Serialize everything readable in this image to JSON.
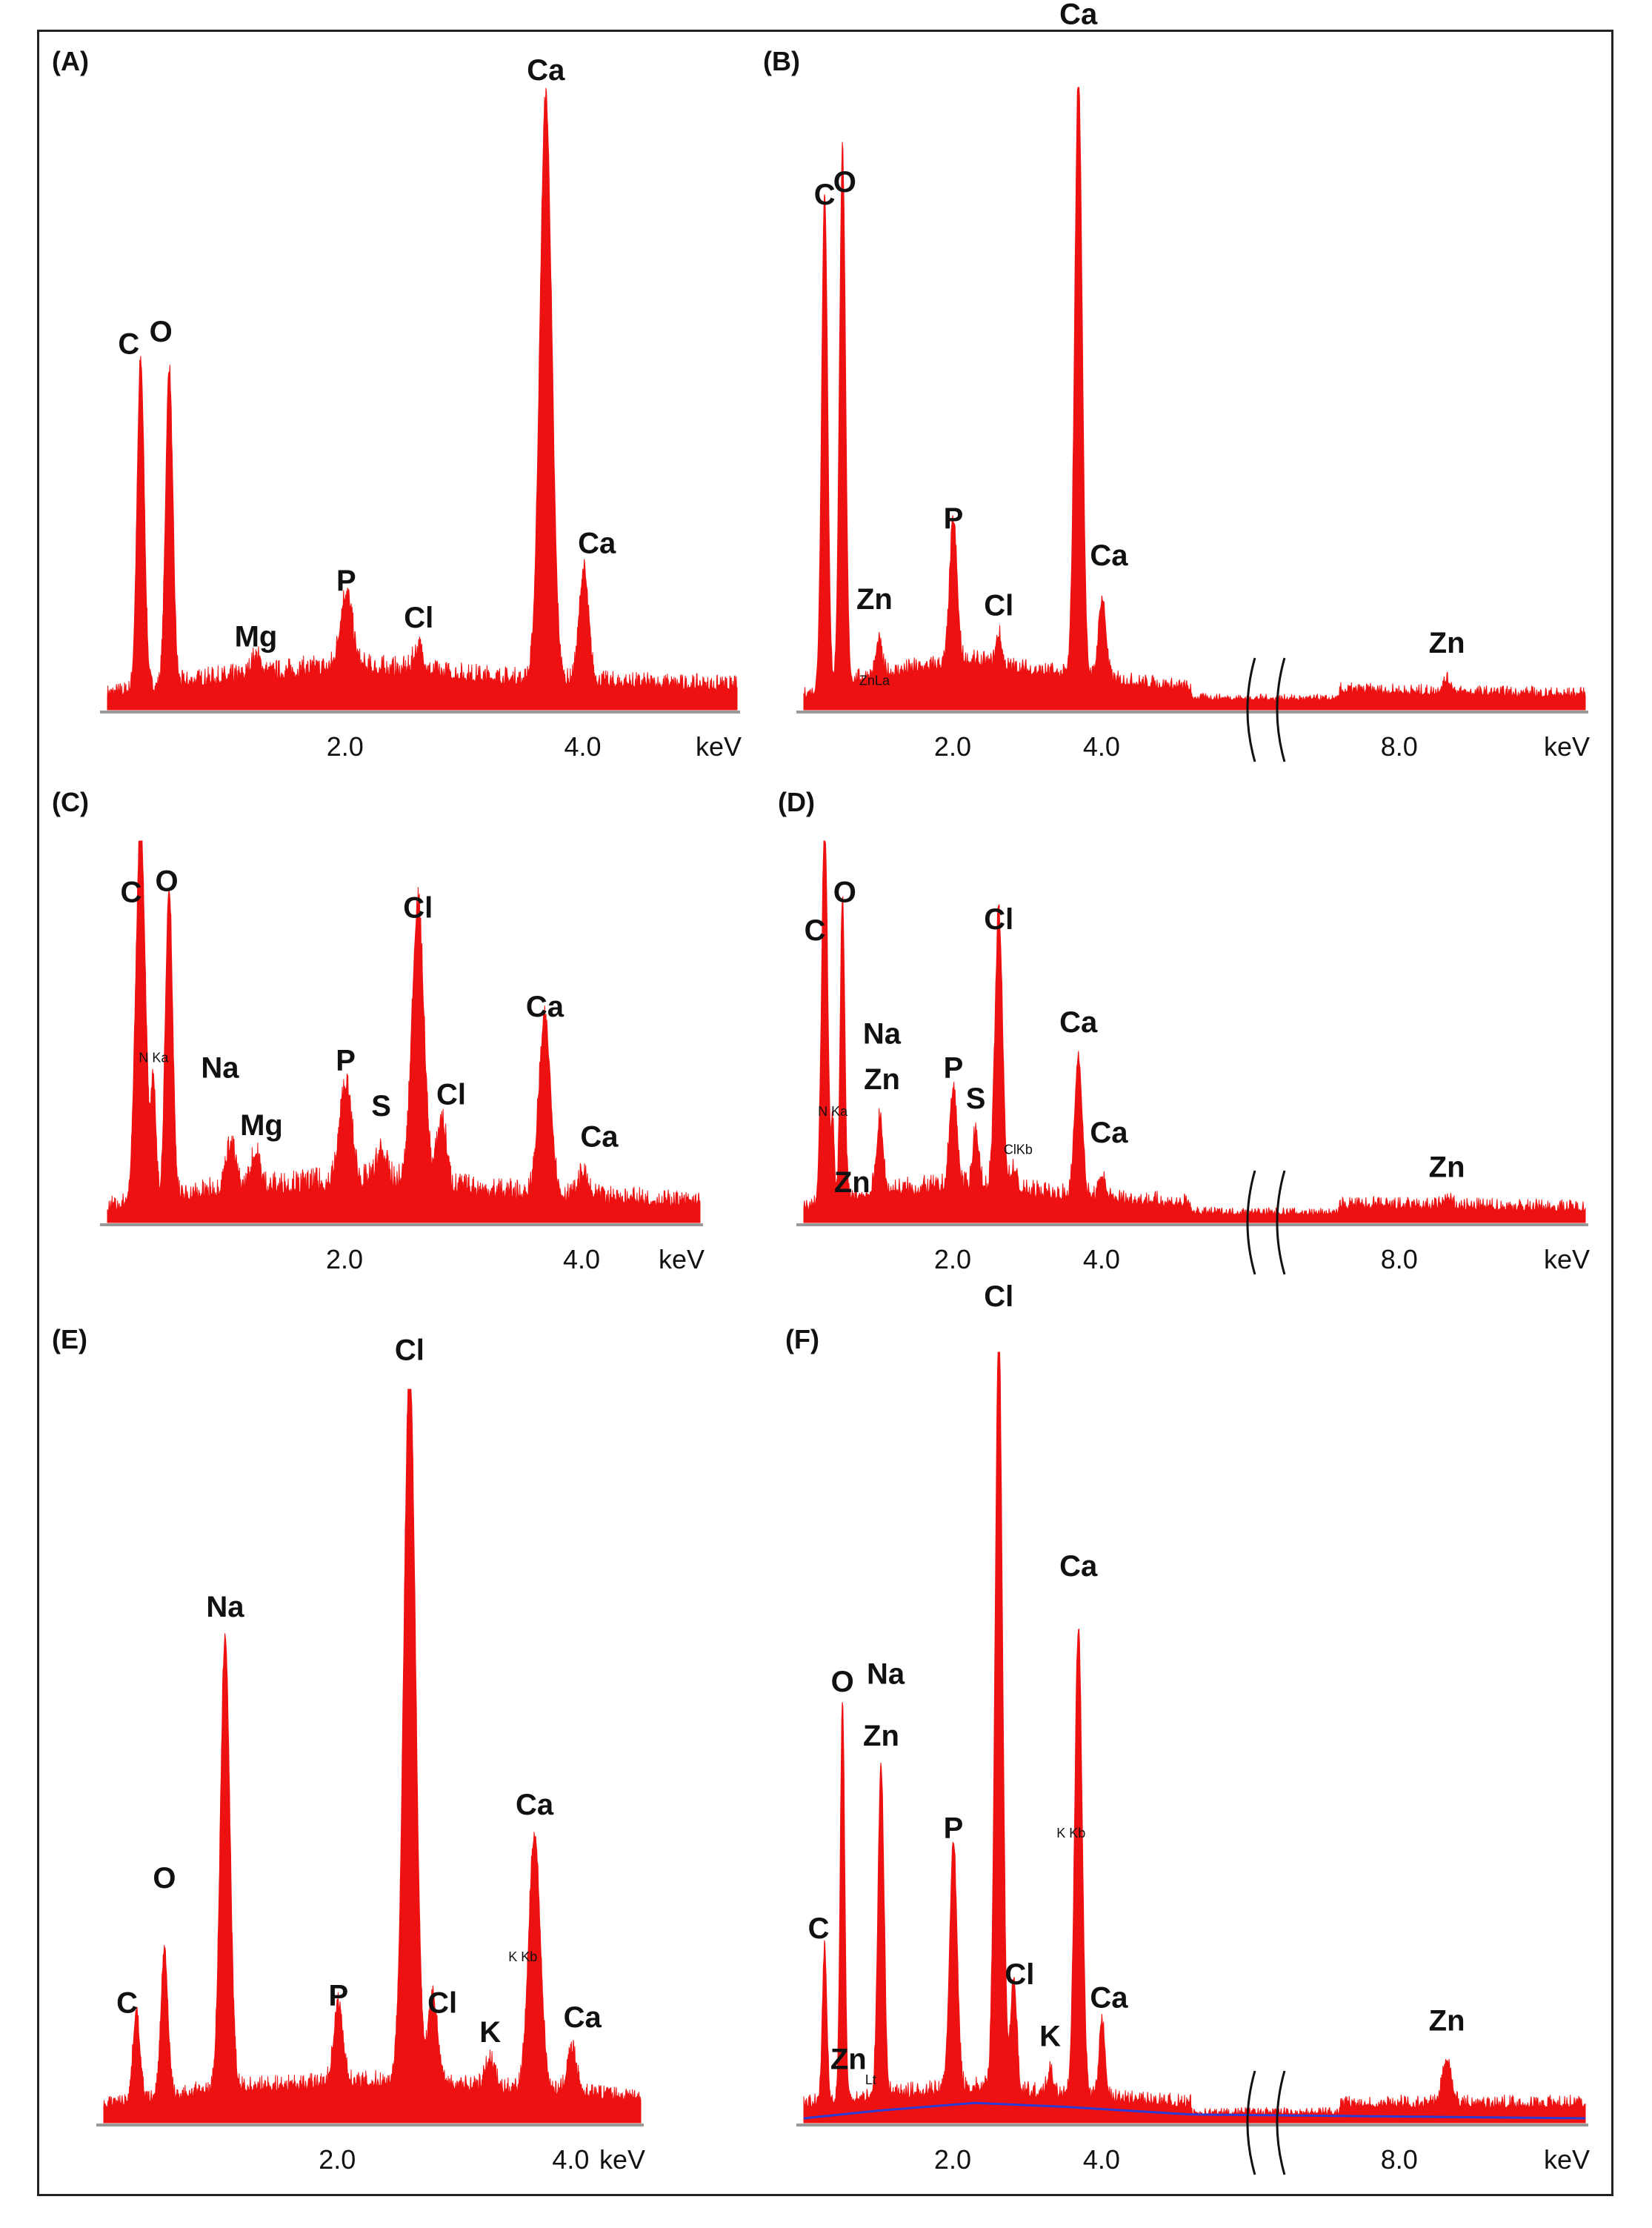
{
  "colors": {
    "spectrum": "#ee1111",
    "axis": "#999999",
    "text": "#111111",
    "background_curve": "#2a3bd6",
    "frame": "#222222"
  },
  "chart_data": [
    {
      "type": "area",
      "panel": "(A)",
      "xlabel": "keV",
      "xlim": [
        0,
        5.3
      ],
      "ylim": [
        0,
        1
      ],
      "ticks": [
        {
          "v": 2.0,
          "label": "2.0"
        },
        {
          "v": 4.0,
          "label": "4.0"
        }
      ],
      "axis_break": false,
      "noise": 0.04,
      "background": [
        [
          0,
          0.02
        ],
        [
          0.8,
          0.04
        ],
        [
          2.0,
          0.06
        ],
        [
          3.5,
          0.04
        ],
        [
          5.3,
          0.03
        ]
      ],
      "peaks": [
        {
          "x": 0.28,
          "h": 0.53,
          "w": 0.03
        },
        {
          "x": 0.52,
          "h": 0.51,
          "w": 0.03
        },
        {
          "x": 1.25,
          "h": 0.03,
          "w": 0.04
        },
        {
          "x": 2.01,
          "h": 0.12,
          "w": 0.05
        },
        {
          "x": 2.62,
          "h": 0.04,
          "w": 0.04
        },
        {
          "x": 3.69,
          "h": 0.94,
          "w": 0.05
        },
        {
          "x": 4.01,
          "h": 0.18,
          "w": 0.04
        }
      ],
      "annotations": [
        {
          "text": "C",
          "x": 0.18,
          "y": 0.56
        },
        {
          "text": "O",
          "x": 0.45,
          "y": 0.58
        },
        {
          "text": "Mg",
          "x": 1.25,
          "y": 0.09
        },
        {
          "text": "P",
          "x": 2.01,
          "y": 0.18
        },
        {
          "text": "Cl",
          "x": 2.62,
          "y": 0.12
        },
        {
          "text": "Ca",
          "x": 3.69,
          "y": 1.0
        },
        {
          "text": "Ca",
          "x": 4.12,
          "y": 0.24
        }
      ]
    },
    {
      "type": "area",
      "panel": "(B)",
      "xlabel": "keV",
      "xlim": [
        0,
        10.5
      ],
      "ylim": [
        0,
        1
      ],
      "ticks": [
        {
          "v": 2.0,
          "label": "2.0"
        },
        {
          "v": 4.0,
          "label": "4.0"
        },
        {
          "v": 8.0,
          "label": "8.0"
        }
      ],
      "axis_break": true,
      "break_gap": [
        5.2,
        7.2
      ],
      "noise": 0.03,
      "background": [
        [
          0,
          0.02
        ],
        [
          0.9,
          0.05
        ],
        [
          2.2,
          0.07
        ],
        [
          3.5,
          0.05
        ],
        [
          5.2,
          0.03
        ],
        [
          10.5,
          0.02
        ]
      ],
      "peaks": [
        {
          "x": 0.28,
          "h": 0.8,
          "w": 0.04
        },
        {
          "x": 0.52,
          "h": 0.86,
          "w": 0.04
        },
        {
          "x": 1.01,
          "h": 0.05,
          "w": 0.04
        },
        {
          "x": 2.01,
          "h": 0.23,
          "w": 0.05
        },
        {
          "x": 2.62,
          "h": 0.05,
          "w": 0.04
        },
        {
          "x": 3.69,
          "h": 0.97,
          "w": 0.05
        },
        {
          "x": 4.01,
          "h": 0.13,
          "w": 0.05
        },
        {
          "x": 8.64,
          "h": 0.02,
          "w": 0.06
        }
      ],
      "annotations": [
        {
          "text": "C",
          "x": 0.28,
          "y": 0.8
        },
        {
          "text": "O",
          "x": 0.55,
          "y": 0.82
        },
        {
          "text": "Zn",
          "x": 0.95,
          "y": 0.15
        },
        {
          "text": "Cl",
          "x": 2.62,
          "y": 0.14
        },
        {
          "text": "P",
          "x": 2.01,
          "y": 0.28
        },
        {
          "text": "Ca",
          "x": 3.69,
          "y": 1.09
        },
        {
          "text": "Ca",
          "x": 4.1,
          "y": 0.22
        },
        {
          "text": "Zn",
          "x": 8.64,
          "y": 0.08
        }
      ],
      "small_annotations": [
        {
          "text": "ZnLa",
          "x": 0.95,
          "y": 0.04
        }
      ]
    },
    {
      "type": "area",
      "panel": "(C)",
      "xlabel": "keV",
      "xlim": [
        0,
        5.0
      ],
      "ylim": [
        0,
        1
      ],
      "ticks": [
        {
          "v": 2.0,
          "label": "2.0"
        },
        {
          "v": 4.0,
          "label": "4.0"
        }
      ],
      "axis_break": false,
      "noise": 0.06,
      "background": [
        [
          0,
          0.03
        ],
        [
          1.0,
          0.07
        ],
        [
          2.3,
          0.09
        ],
        [
          3.5,
          0.06
        ],
        [
          5.0,
          0.04
        ]
      ],
      "peaks": [
        {
          "x": 0.28,
          "h": 1.0,
          "w": 0.04
        },
        {
          "x": 0.52,
          "h": 0.82,
          "w": 0.03
        },
        {
          "x": 0.39,
          "h": 0.3,
          "w": 0.02
        },
        {
          "x": 1.04,
          "h": 0.12,
          "w": 0.04
        },
        {
          "x": 1.25,
          "h": 0.09,
          "w": 0.04
        },
        {
          "x": 2.01,
          "h": 0.26,
          "w": 0.05
        },
        {
          "x": 2.31,
          "h": 0.08,
          "w": 0.04
        },
        {
          "x": 2.62,
          "h": 0.74,
          "w": 0.05
        },
        {
          "x": 2.82,
          "h": 0.18,
          "w": 0.04
        },
        {
          "x": 3.69,
          "h": 0.46,
          "w": 0.05
        },
        {
          "x": 4.01,
          "h": 0.06,
          "w": 0.04
        }
      ],
      "annotations": [
        {
          "text": "C",
          "x": 0.2,
          "y": 0.82
        },
        {
          "text": "O",
          "x": 0.5,
          "y": 0.85
        },
        {
          "text": "Na",
          "x": 0.95,
          "y": 0.36
        },
        {
          "text": "Mg",
          "x": 1.3,
          "y": 0.21
        },
        {
          "text": "P",
          "x": 2.01,
          "y": 0.38
        },
        {
          "text": "S",
          "x": 2.31,
          "y": 0.26
        },
        {
          "text": "Cl",
          "x": 2.62,
          "y": 0.78
        },
        {
          "text": "Cl",
          "x": 2.9,
          "y": 0.29
        },
        {
          "text": "Ca",
          "x": 3.69,
          "y": 0.52
        },
        {
          "text": "Ca",
          "x": 4.15,
          "y": 0.18
        }
      ],
      "small_annotations": [
        {
          "text": "N Ka",
          "x": 0.39,
          "y": 0.42
        }
      ]
    },
    {
      "type": "area",
      "panel": "(D)",
      "xlabel": "keV",
      "xlim": [
        0,
        10.5
      ],
      "ylim": [
        0,
        1
      ],
      "ticks": [
        {
          "v": 2.0,
          "label": "2.0"
        },
        {
          "v": 4.0,
          "label": "4.0"
        },
        {
          "v": 8.0,
          "label": "8.0"
        }
      ],
      "axis_break": true,
      "break_gap": [
        5.2,
        7.2
      ],
      "noise": 0.05,
      "background": [
        [
          0,
          0.03
        ],
        [
          1.0,
          0.07
        ],
        [
          2.3,
          0.08
        ],
        [
          3.5,
          0.06
        ],
        [
          5.2,
          0.04
        ],
        [
          10.5,
          0.03
        ]
      ],
      "peaks": [
        {
          "x": 0.28,
          "h": 1.0,
          "w": 0.04
        },
        {
          "x": 0.52,
          "h": 0.8,
          "w": 0.03
        },
        {
          "x": 0.39,
          "h": 0.2,
          "w": 0.02
        },
        {
          "x": 1.01,
          "h": 0.12,
          "w": 0.04
        },
        {
          "x": 1.04,
          "h": 0.08,
          "w": 0.04
        },
        {
          "x": 2.01,
          "h": 0.26,
          "w": 0.05
        },
        {
          "x": 2.31,
          "h": 0.15,
          "w": 0.04
        },
        {
          "x": 2.62,
          "h": 0.73,
          "w": 0.05
        },
        {
          "x": 2.82,
          "h": 0.06,
          "w": 0.04
        },
        {
          "x": 3.69,
          "h": 0.37,
          "w": 0.05
        },
        {
          "x": 4.01,
          "h": 0.06,
          "w": 0.04
        },
        {
          "x": 8.64,
          "h": 0.02,
          "w": 0.06
        }
      ],
      "annotations": [
        {
          "text": "C",
          "x": 0.15,
          "y": 0.72
        },
        {
          "text": "O",
          "x": 0.55,
          "y": 0.82
        },
        {
          "text": "Na",
          "x": 1.05,
          "y": 0.45
        },
        {
          "text": "Zn",
          "x": 1.05,
          "y": 0.33
        },
        {
          "text": "Zn",
          "x": 0.65,
          "y": 0.06
        },
        {
          "text": "P",
          "x": 2.01,
          "y": 0.36
        },
        {
          "text": "S",
          "x": 2.31,
          "y": 0.28
        },
        {
          "text": "Cl",
          "x": 2.62,
          "y": 0.75
        },
        {
          "text": "Ca",
          "x": 3.69,
          "y": 0.48
        },
        {
          "text": "Ca",
          "x": 4.1,
          "y": 0.19
        },
        {
          "text": "Zn",
          "x": 8.64,
          "y": 0.1
        }
      ],
      "small_annotations": [
        {
          "text": "N Ka",
          "x": 0.39,
          "y": 0.28
        },
        {
          "text": "ClKb",
          "x": 2.88,
          "y": 0.18
        }
      ]
    },
    {
      "type": "area",
      "panel": "(E)",
      "xlabel": "keV",
      "xlim": [
        0,
        4.6
      ],
      "ylim": [
        0,
        1
      ],
      "ticks": [
        {
          "v": 2.0,
          "label": "2.0"
        },
        {
          "v": 4.0,
          "label": "4.0"
        }
      ],
      "axis_break": false,
      "noise": 0.03,
      "background": [
        [
          0,
          0.02
        ],
        [
          1.0,
          0.04
        ],
        [
          2.5,
          0.05
        ],
        [
          3.5,
          0.04
        ],
        [
          4.6,
          0.03
        ]
      ],
      "peaks": [
        {
          "x": 0.28,
          "h": 0.12,
          "w": 0.03
        },
        {
          "x": 0.52,
          "h": 0.2,
          "w": 0.03
        },
        {
          "x": 1.04,
          "h": 0.62,
          "w": 0.04
        },
        {
          "x": 2.01,
          "h": 0.11,
          "w": 0.04
        },
        {
          "x": 2.62,
          "h": 0.98,
          "w": 0.05
        },
        {
          "x": 2.82,
          "h": 0.12,
          "w": 0.04
        },
        {
          "x": 3.31,
          "h": 0.04,
          "w": 0.04
        },
        {
          "x": 3.69,
          "h": 0.35,
          "w": 0.05
        },
        {
          "x": 4.01,
          "h": 0.06,
          "w": 0.04
        }
      ],
      "annotations": [
        {
          "text": "C",
          "x": 0.2,
          "y": 0.14
        },
        {
          "text": "O",
          "x": 0.52,
          "y": 0.31
        },
        {
          "text": "Na",
          "x": 1.04,
          "y": 0.68
        },
        {
          "text": "P",
          "x": 2.01,
          "y": 0.15
        },
        {
          "text": "Cl",
          "x": 2.62,
          "y": 1.03
        },
        {
          "text": "Cl",
          "x": 2.9,
          "y": 0.14
        },
        {
          "text": "K",
          "x": 3.31,
          "y": 0.1
        },
        {
          "text": "Ca",
          "x": 3.69,
          "y": 0.41
        },
        {
          "text": "Ca",
          "x": 4.1,
          "y": 0.12
        }
      ],
      "small_annotations": [
        {
          "text": "K Kb",
          "x": 3.59,
          "y": 0.22
        }
      ]
    },
    {
      "type": "area",
      "panel": "(F)",
      "xlabel": "keV",
      "xlim": [
        0,
        10.5
      ],
      "ylim": [
        0,
        1
      ],
      "ticks": [
        {
          "v": 2.0,
          "label": "2.0"
        },
        {
          "v": 4.0,
          "label": "4.0"
        },
        {
          "v": 8.0,
          "label": "8.0"
        }
      ],
      "axis_break": true,
      "break_gap": [
        5.2,
        7.2
      ],
      "noise": 0.03,
      "background": [
        [
          0,
          0.02
        ],
        [
          1.0,
          0.03
        ],
        [
          2.3,
          0.04
        ],
        [
          3.5,
          0.03
        ],
        [
          5.2,
          0.02
        ],
        [
          10.5,
          0.02
        ]
      ],
      "blue_curve": [
        [
          0,
          0.0
        ],
        [
          1.0,
          0.01
        ],
        [
          2.3,
          0.02
        ],
        [
          3.5,
          0.015
        ],
        [
          5.2,
          0.005
        ],
        [
          10.5,
          0.0
        ]
      ],
      "peaks": [
        {
          "x": 0.28,
          "h": 0.2,
          "w": 0.03
        },
        {
          "x": 0.52,
          "h": 0.52,
          "w": 0.03
        },
        {
          "x": 1.01,
          "h": 0.04,
          "w": 0.04
        },
        {
          "x": 1.04,
          "h": 0.4,
          "w": 0.04
        },
        {
          "x": 2.01,
          "h": 0.32,
          "w": 0.05
        },
        {
          "x": 2.62,
          "h": 0.99,
          "w": 0.05
        },
        {
          "x": 2.82,
          "h": 0.15,
          "w": 0.04
        },
        {
          "x": 3.31,
          "h": 0.03,
          "w": 0.04
        },
        {
          "x": 3.69,
          "h": 0.61,
          "w": 0.05
        },
        {
          "x": 4.01,
          "h": 0.1,
          "w": 0.04
        },
        {
          "x": 8.64,
          "h": 0.06,
          "w": 0.06
        }
      ],
      "annotations": [
        {
          "text": "C",
          "x": 0.2,
          "y": 0.23
        },
        {
          "text": "O",
          "x": 0.52,
          "y": 0.55
        },
        {
          "text": "Na",
          "x": 1.1,
          "y": 0.56
        },
        {
          "text": "Zn",
          "x": 1.04,
          "y": 0.48
        },
        {
          "text": "Zn",
          "x": 0.6,
          "y": 0.06
        },
        {
          "text": "P",
          "x": 2.01,
          "y": 0.36
        },
        {
          "text": "Cl",
          "x": 2.62,
          "y": 1.05
        },
        {
          "text": "Cl",
          "x": 2.9,
          "y": 0.17
        },
        {
          "text": "K",
          "x": 3.31,
          "y": 0.09
        },
        {
          "text": "Ca",
          "x": 3.69,
          "y": 0.7
        },
        {
          "text": "Ca",
          "x": 4.1,
          "y": 0.14
        },
        {
          "text": "Zn",
          "x": 8.64,
          "y": 0.11
        }
      ],
      "small_annotations": [
        {
          "text": "Lt",
          "x": 0.9,
          "y": 0.05
        },
        {
          "text": "K Kb",
          "x": 3.59,
          "y": 0.37
        }
      ]
    }
  ]
}
